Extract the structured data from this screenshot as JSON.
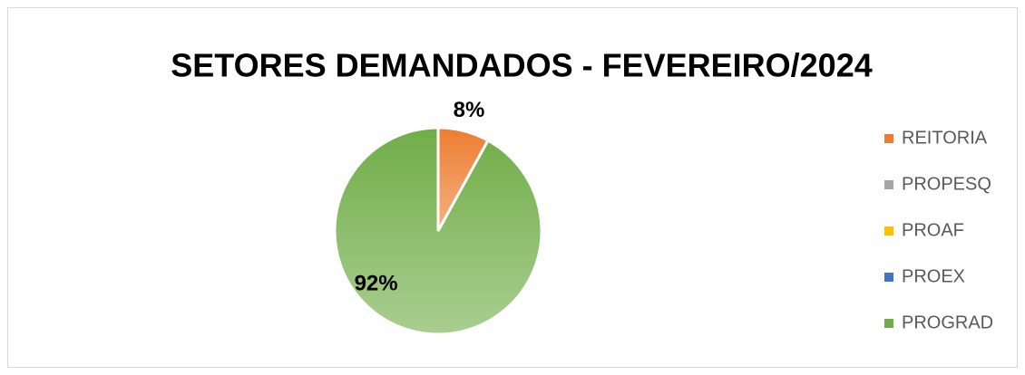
{
  "chart_data": {
    "type": "pie",
    "title": "SETORES DEMANDADOS - FEVEREIRO/2024",
    "categories": [
      "REITORIA",
      "PROPESQ",
      "PROAF",
      "PROEX",
      "PROGRAD"
    ],
    "values": [
      8,
      0,
      0,
      0,
      92
    ],
    "value_labels": [
      "8%",
      null,
      null,
      null,
      "92%"
    ],
    "colors": [
      "#ed7d31",
      "#a5a5a5",
      "#ffc000",
      "#4472c4",
      "#70ad47"
    ],
    "legend": "right"
  }
}
